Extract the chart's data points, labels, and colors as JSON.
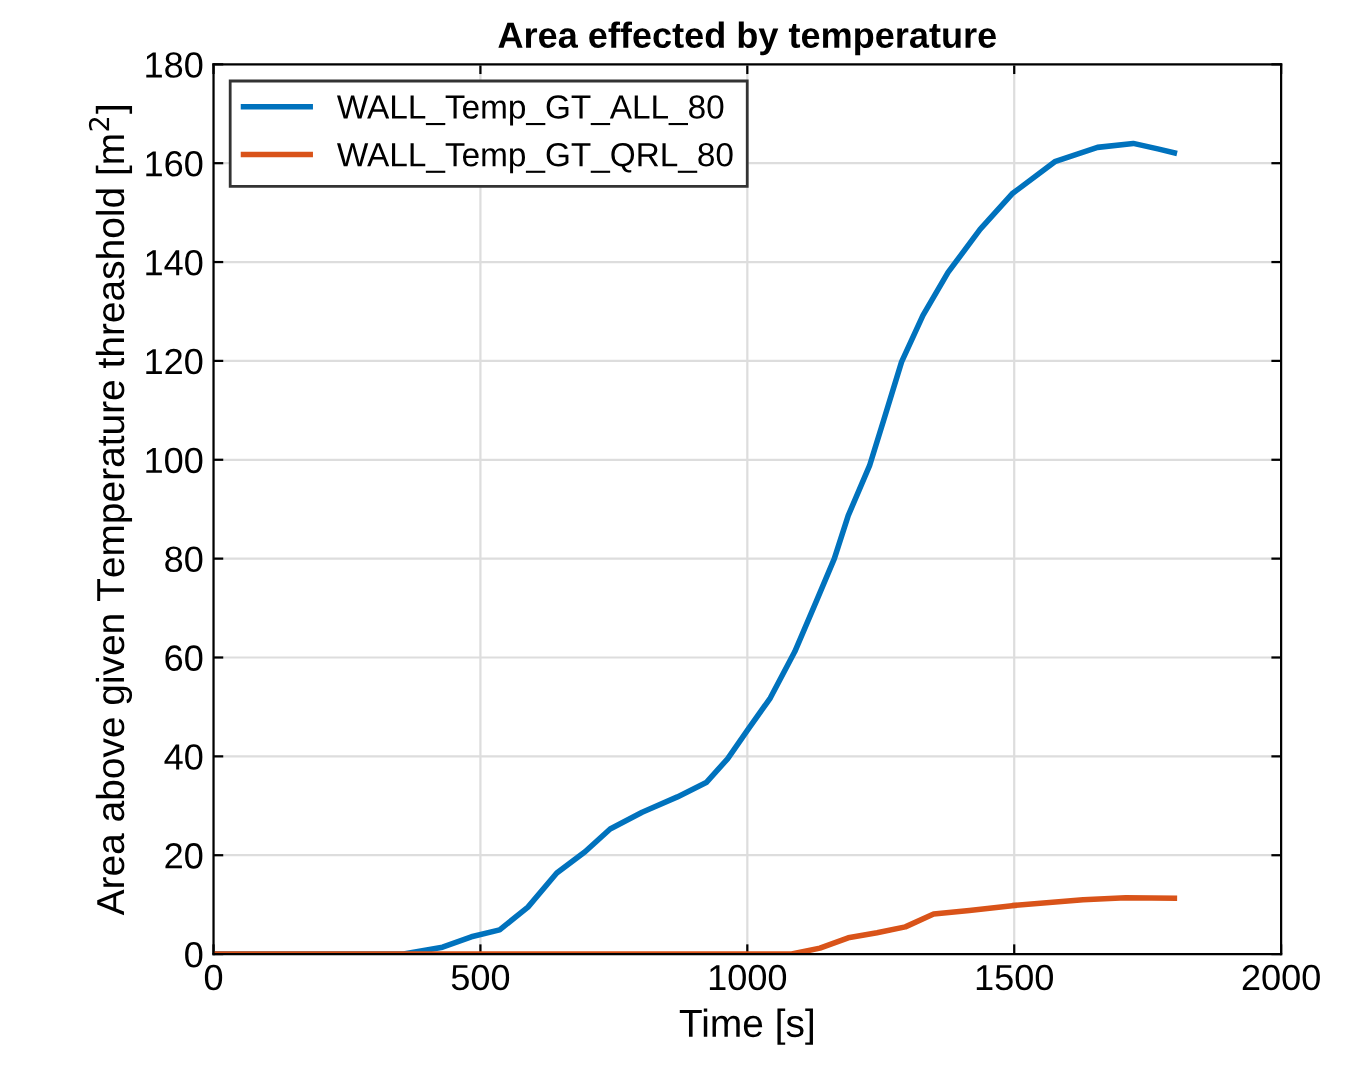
{
  "chart_data": {
    "type": "line",
    "title": "Area effected by temperature",
    "xlabel": "Time [s]",
    "ylabel": "Area above given Temperature threashold [m$^{2}$]",
    "series": [
      {
        "name": "WALL_Temp_GT_ALL_80",
        "color": "#0072bd",
        "x": [
          0,
          356,
          429,
          483,
          536,
          589,
          643,
          696,
          743,
          803,
          869,
          923,
          963,
          1003,
          1043,
          1089,
          1129,
          1163,
          1189,
          1229,
          1256,
          1289,
          1329,
          1376,
          1436,
          1496,
          1576,
          1656,
          1723,
          1769,
          1800
        ],
        "values": [
          0,
          0,
          1.4,
          3.5,
          4.9,
          9.5,
          16.4,
          20.7,
          25.3,
          28.7,
          31.8,
          34.7,
          39.5,
          45.7,
          51.8,
          61.2,
          71.3,
          80,
          88.7,
          98.8,
          108.2,
          119.8,
          129.2,
          137.9,
          146.6,
          153.8,
          160.3,
          163.2,
          164,
          162.9,
          162.1
        ]
      },
      {
        "name": "WALL_Temp_GT_QRL_80",
        "color": "#d95319",
        "x": [
          0,
          1083,
          1136,
          1189,
          1243,
          1296,
          1349,
          1416,
          1496,
          1629,
          1709,
          1800
        ],
        "values": [
          0,
          0,
          1.2,
          3.3,
          4.3,
          5.5,
          8.1,
          8.8,
          9.8,
          11,
          11.4,
          11.3
        ]
      }
    ],
    "xlim": [
      0,
      2000
    ],
    "xticks": [
      0,
      500,
      1000,
      1500,
      2000
    ],
    "ylim": [
      0,
      180
    ],
    "yticks": [
      0,
      20,
      40,
      60,
      80,
      100,
      120,
      140,
      160,
      180
    ],
    "grid": true,
    "legend": "top left",
    "marker": "none",
    "line_style": "solid"
  }
}
